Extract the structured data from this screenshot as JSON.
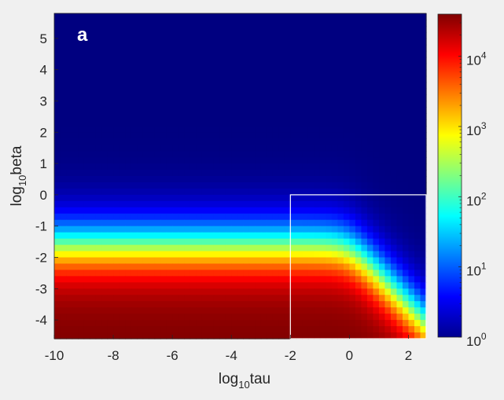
{
  "chart_data": {
    "type": "heatmap",
    "panel_label": "a",
    "xlabel": {
      "base": "log",
      "sub": "10",
      "rest": "tau"
    },
    "ylabel": {
      "base": "log",
      "sub": "10",
      "rest": "beta"
    },
    "xlim": [
      -10,
      2.6
    ],
    "ylim": [
      -4.6,
      5.8
    ],
    "xticks": [
      -10,
      -8,
      -6,
      -4,
      -2,
      0,
      2
    ],
    "xtick_labels": [
      "-10",
      "-8",
      "-6",
      "-4",
      "-2",
      "0",
      "2"
    ],
    "yticks": [
      5,
      4,
      3,
      2,
      1,
      0,
      -1,
      -2,
      -3,
      -4
    ],
    "ytick_labels": [
      "5",
      "4",
      "3",
      "2",
      "1",
      "0",
      "-1",
      "-2",
      "-3",
      "-4"
    ],
    "colormap": "jet",
    "color_scale": "log",
    "clim_exponent": [
      0,
      4.6
    ],
    "colorbar_ticks": [
      {
        "base": "10",
        "exp": "0",
        "value": 0
      },
      {
        "base": "10",
        "exp": "1",
        "value": 1
      },
      {
        "base": "10",
        "exp": "2",
        "value": 2
      },
      {
        "base": "10",
        "exp": "3",
        "value": 3
      },
      {
        "base": "10",
        "exp": "4",
        "value": 4
      }
    ],
    "highlight_box": {
      "x": [
        -2,
        2.6
      ],
      "y": [
        -4.6,
        0
      ],
      "color": "#ffffff"
    }
  }
}
